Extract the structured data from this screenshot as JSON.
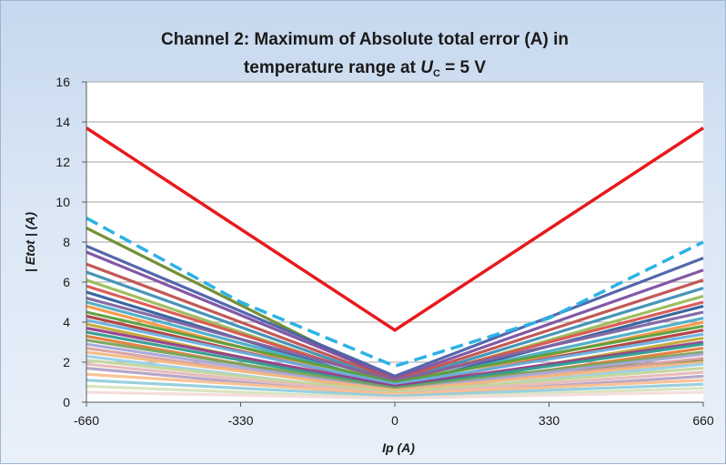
{
  "chart_data": {
    "type": "line",
    "title_line1": "Channel 2: Maximum of Absolute total error (A) in",
    "title_line2_prefix": "temperature range at ",
    "title_line2_var": "U",
    "title_line2_sub": "C",
    "title_line2_suffix": " = 5 V",
    "xlabel": "Ip (A)",
    "ylabel": "| Etot | (A)",
    "x_ticks": [
      -660,
      -330,
      0,
      330,
      660
    ],
    "y_ticks": [
      0,
      2,
      4,
      6,
      8,
      10,
      12,
      14,
      16
    ],
    "xlim": [
      -660,
      660
    ],
    "ylim": [
      0,
      16
    ],
    "grid": "horizontal",
    "legend": "none",
    "limit_series": {
      "x": [
        -660,
        0,
        660
      ],
      "values": [
        13.7,
        3.6,
        13.7
      ],
      "color": "#e8191c"
    },
    "envelope_series": {
      "x": [
        -660,
        -330,
        0,
        330,
        660
      ],
      "values": [
        9.2,
        5.0,
        1.8,
        4.2,
        8.0
      ],
      "color": "#2cb2e6"
    },
    "x": [
      -660,
      0,
      660
    ],
    "series": [
      {
        "values": [
          8.7,
          1.0,
          2.1
        ],
        "color": "#6e8b2a"
      },
      {
        "values": [
          7.8,
          1.3,
          7.2
        ],
        "color": "#4a5fa8"
      },
      {
        "values": [
          7.5,
          1.2,
          6.6
        ],
        "color": "#7c4fa0"
      },
      {
        "values": [
          6.9,
          1.1,
          6.1
        ],
        "color": "#c0504d"
      },
      {
        "values": [
          6.5,
          1.0,
          5.7
        ],
        "color": "#3d8fb5"
      },
      {
        "values": [
          6.1,
          0.9,
          5.3
        ],
        "color": "#9bbb59"
      },
      {
        "values": [
          5.8,
          1.0,
          5.0
        ],
        "color": "#d9534f"
      },
      {
        "values": [
          5.5,
          0.8,
          4.8
        ],
        "color": "#2e5f9c"
      },
      {
        "values": [
          5.2,
          1.1,
          4.5
        ],
        "color": "#8064a2"
      },
      {
        "values": [
          5.0,
          0.9,
          4.2
        ],
        "color": "#4bacc6"
      },
      {
        "values": [
          4.8,
          0.7,
          4.0
        ],
        "color": "#f79646"
      },
      {
        "values": [
          4.5,
          1.0,
          3.8
        ],
        "color": "#5b9e3c"
      },
      {
        "values": [
          4.3,
          0.8,
          3.6
        ],
        "color": "#b23b3b"
      },
      {
        "values": [
          4.1,
          0.9,
          3.4
        ],
        "color": "#6ab0de"
      },
      {
        "values": [
          3.9,
          0.6,
          3.2
        ],
        "color": "#c4a832"
      },
      {
        "values": [
          3.7,
          0.8,
          3.0
        ],
        "color": "#943e8c"
      },
      {
        "values": [
          3.5,
          0.7,
          2.9
        ],
        "color": "#2f9c8f"
      },
      {
        "values": [
          3.3,
          0.5,
          2.7
        ],
        "color": "#e07b39"
      },
      {
        "values": [
          3.1,
          0.7,
          2.5
        ],
        "color": "#7aa35a"
      },
      {
        "values": [
          2.9,
          0.6,
          2.4
        ],
        "color": "#a6a6d8"
      },
      {
        "values": [
          2.7,
          0.5,
          2.2
        ],
        "color": "#d8a0a0"
      },
      {
        "values": [
          2.5,
          0.6,
          2.0
        ],
        "color": "#f2b880"
      },
      {
        "values": [
          2.3,
          0.4,
          1.9
        ],
        "color": "#9ad0e8"
      },
      {
        "values": [
          2.1,
          0.5,
          1.7
        ],
        "color": "#c3d69b"
      },
      {
        "values": [
          1.9,
          0.4,
          1.5
        ],
        "color": "#e6b9b8"
      },
      {
        "values": [
          1.7,
          0.3,
          1.3
        ],
        "color": "#b3a2c7"
      },
      {
        "values": [
          1.4,
          0.4,
          1.1
        ],
        "color": "#fac090"
      },
      {
        "values": [
          1.1,
          0.3,
          0.9
        ],
        "color": "#93cddd"
      },
      {
        "values": [
          0.8,
          0.2,
          0.7
        ],
        "color": "#d7e4bd"
      },
      {
        "values": [
          0.5,
          0.2,
          0.5
        ],
        "color": "#f2dcdb"
      }
    ]
  }
}
